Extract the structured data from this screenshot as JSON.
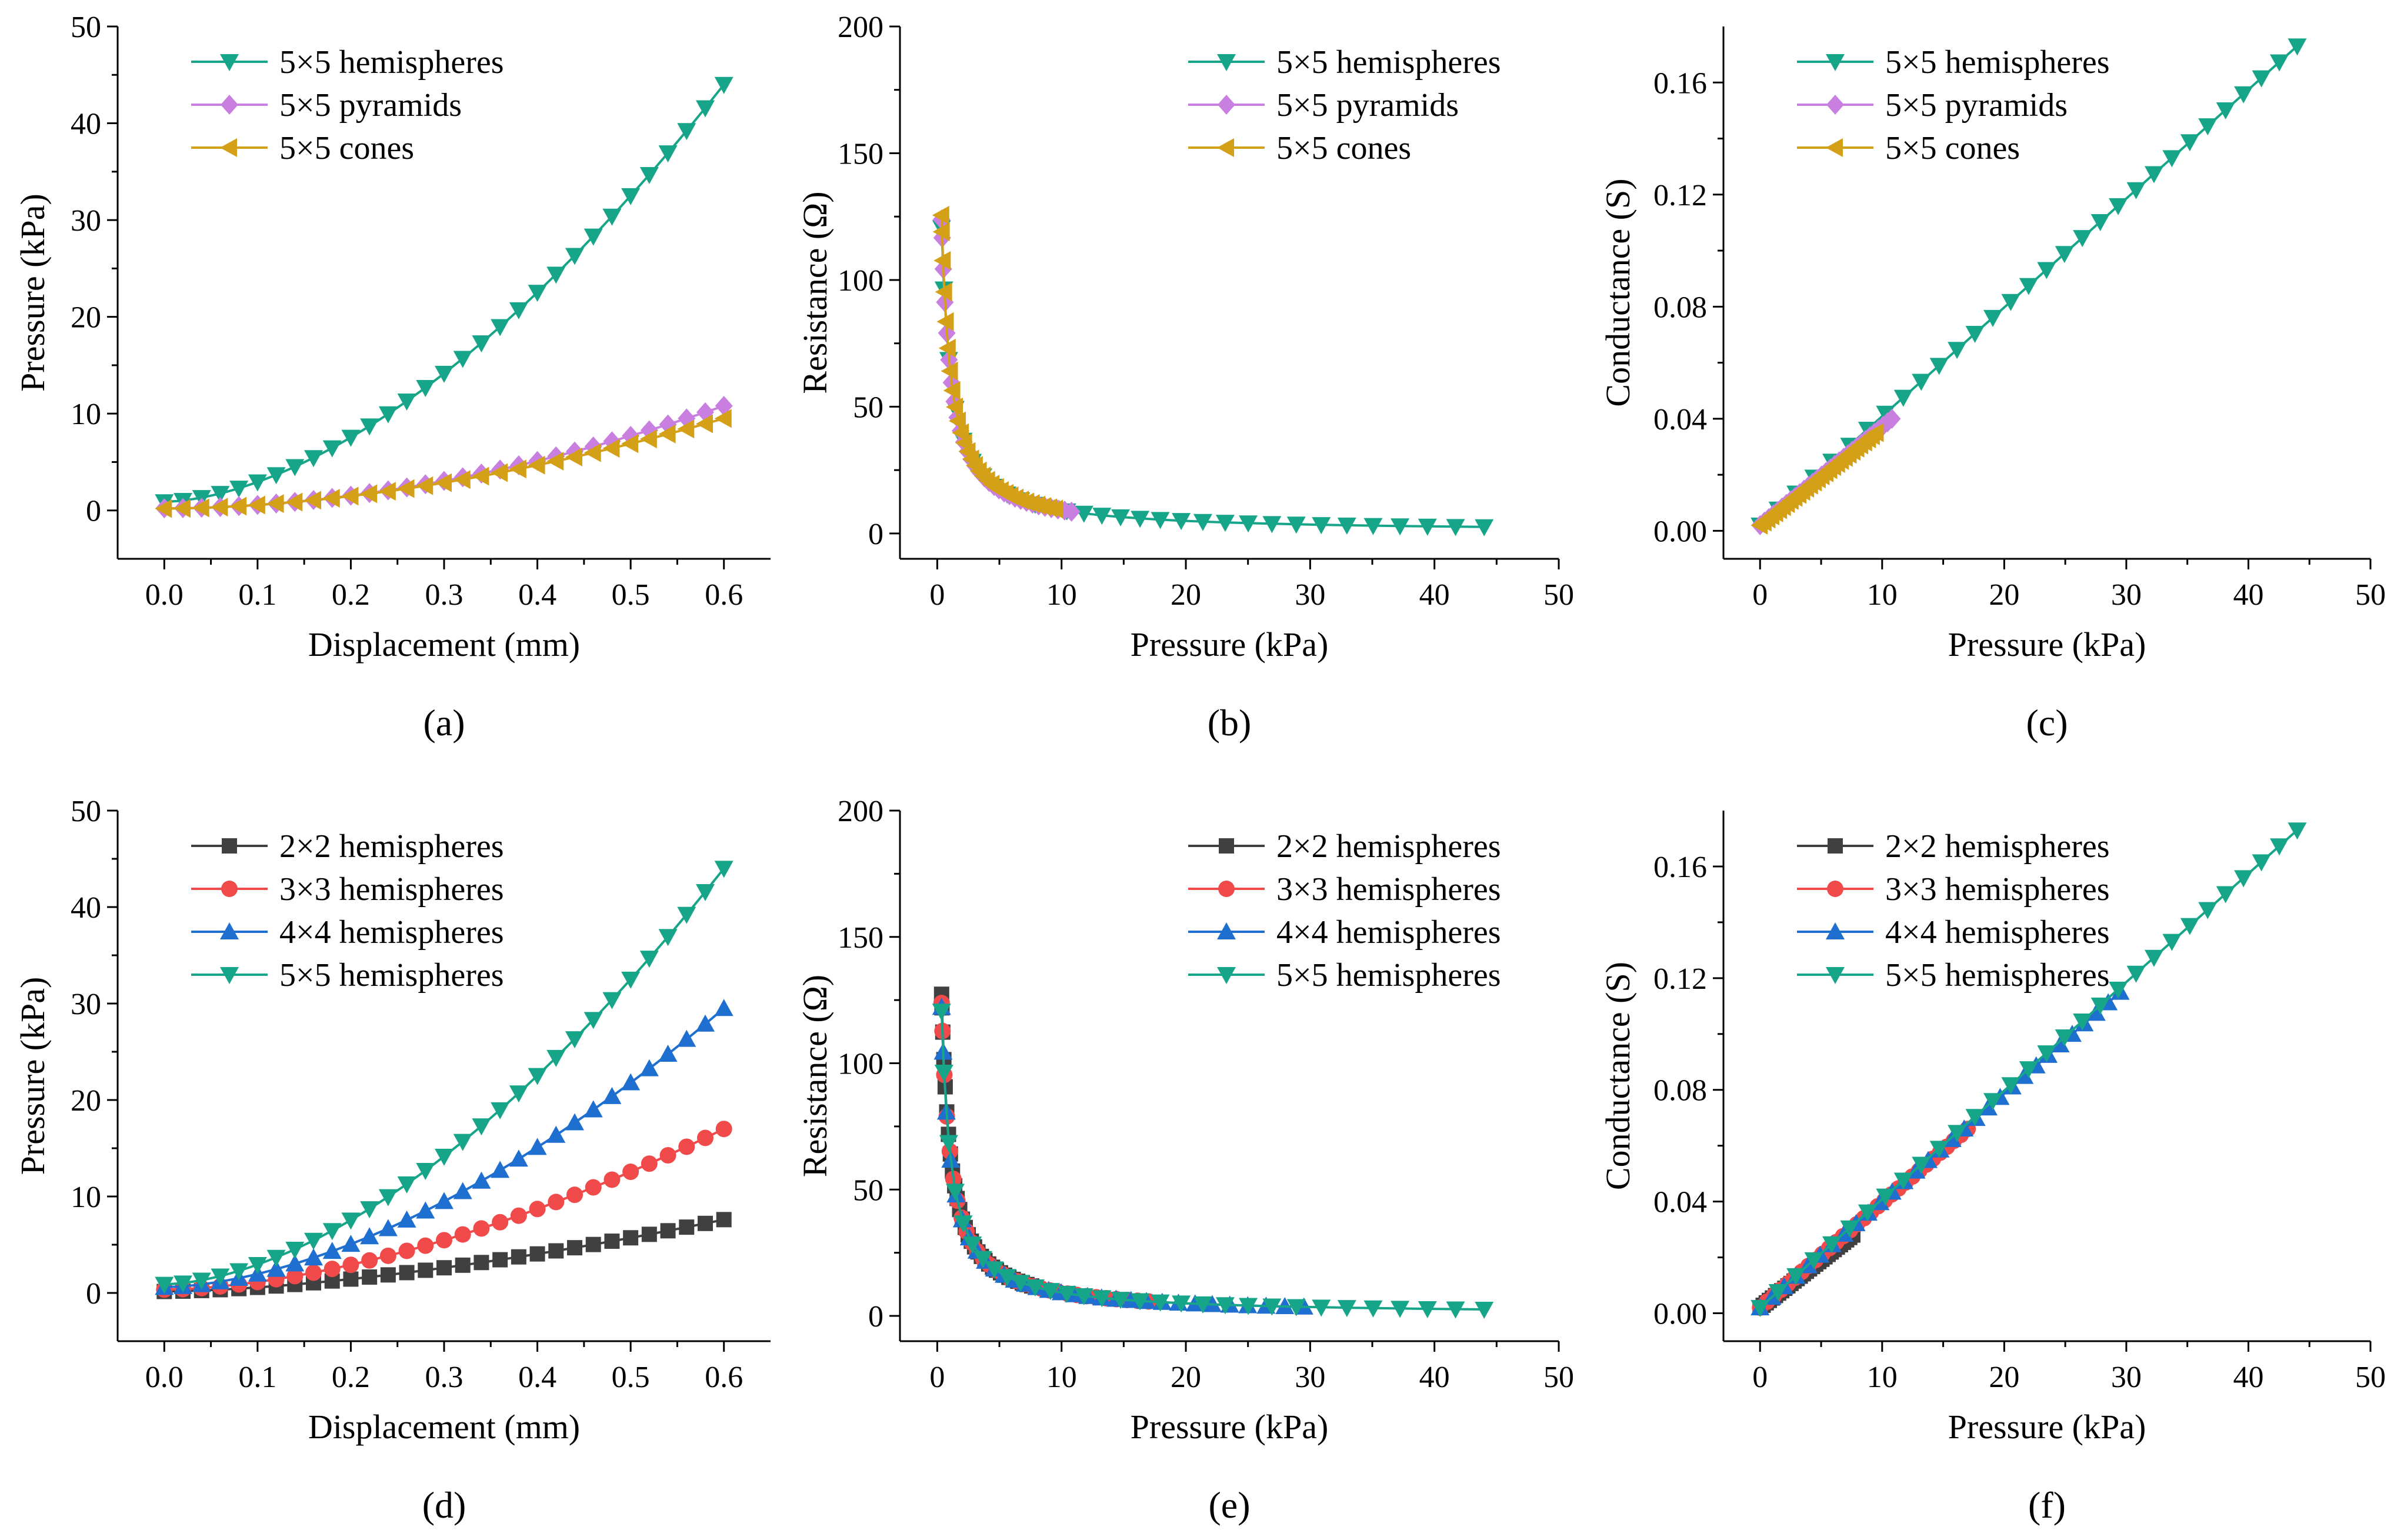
{
  "colors": {
    "green": "#17a589",
    "violet": "#c97fe0",
    "gold": "#d4a017",
    "dark": "#404040",
    "red": "#f04a4a",
    "blue": "#1f6fd1"
  },
  "chart_data": [
    {
      "type": "line",
      "panel_label": "(a)",
      "xlabel": "Displacement (mm)",
      "ylabel": "Pressure (kPa)",
      "xlim": [
        -0.05,
        0.65
      ],
      "ylim": [
        -5,
        50
      ],
      "xticks": [
        0.0,
        0.1,
        0.2,
        0.3,
        0.4,
        0.5,
        0.6
      ],
      "xtick_labels": [
        "0.0",
        "0.1",
        "0.2",
        "0.3",
        "0.4",
        "0.5",
        "0.6"
      ],
      "yticks": [
        0,
        10,
        20,
        30,
        40,
        50
      ],
      "ytick_labels": [
        "0",
        "10",
        "20",
        "30",
        "40",
        "50"
      ],
      "legend": "top-left",
      "series": [
        {
          "name": "5×5 hemispheres",
          "color_key": "green",
          "marker": "tri-down",
          "n_points": 31,
          "x_range": [
            0,
            0.6
          ],
          "y_end": 44,
          "exponent": 1.7
        },
        {
          "name": "5×5 pyramids",
          "color_key": "violet",
          "marker": "diamond",
          "n_points": 31,
          "x_range": [
            0,
            0.6
          ],
          "y_end": 10.8,
          "exponent": 1.9
        },
        {
          "name": "5×5 cones",
          "color_key": "gold",
          "marker": "tri-left",
          "n_points": 31,
          "x_range": [
            0,
            0.6
          ],
          "y_end": 9.5,
          "exponent": 1.8
        }
      ]
    },
    {
      "type": "line",
      "panel_label": "(b)",
      "xlabel": "Pressure (kPa)",
      "ylabel": "Resistance (Ω)",
      "xlim": [
        -3,
        50
      ],
      "ylim": [
        -10,
        200
      ],
      "xticks": [
        0,
        10,
        20,
        30,
        40,
        50
      ],
      "xtick_labels": [
        "0",
        "10",
        "20",
        "30",
        "40",
        "50"
      ],
      "yticks": [
        0,
        50,
        100,
        150,
        200
      ],
      "ytick_labels": [
        "0",
        "50",
        "100",
        "150",
        "200"
      ],
      "legend": "top-right",
      "series": [
        {
          "name": "5×5 hemispheres",
          "color_key": "green",
          "marker": "tri-down",
          "n_points": 31,
          "p_end": 44,
          "r_k": 90,
          "r_c": 0.4,
          "r_f": 0.55
        },
        {
          "name": "5×5 pyramids",
          "color_key": "violet",
          "marker": "diamond",
          "n_points": 31,
          "p_end": 10.8,
          "r_k": 90,
          "r_c": 0.38,
          "r_f": 0.55
        },
        {
          "name": "5×5 cones",
          "color_key": "gold",
          "marker": "tri-left",
          "n_points": 31,
          "p_end": 9.5,
          "r_k": 90,
          "r_c": 0.37,
          "r_f": 0.55
        }
      ]
    },
    {
      "type": "line",
      "panel_label": "(c)",
      "xlabel": "Pressure (kPa)",
      "ylabel": "Conductance (S)",
      "xlim": [
        -3,
        50
      ],
      "ylim": [
        -0.01,
        0.18
      ],
      "xticks": [
        0,
        10,
        20,
        30,
        40,
        50
      ],
      "xtick_labels": [
        "0",
        "10",
        "20",
        "30",
        "40",
        "50"
      ],
      "yticks": [
        0.0,
        0.04,
        0.08,
        0.12,
        0.16
      ],
      "ytick_labels": [
        "0.00",
        "0.04",
        "0.08",
        "0.12",
        "0.16"
      ],
      "legend": "top-left",
      "series": [
        {
          "name": "5×5 hemispheres",
          "color_key": "green",
          "marker": "tri-down",
          "n_points": 31,
          "p_end": 44,
          "g_end": 0.173
        },
        {
          "name": "5×5 pyramids",
          "color_key": "violet",
          "marker": "diamond",
          "n_points": 31,
          "p_end": 10.8,
          "g_end": 0.04
        },
        {
          "name": "5×5 cones",
          "color_key": "gold",
          "marker": "tri-left",
          "n_points": 31,
          "p_end": 9.5,
          "g_end": 0.035
        }
      ]
    },
    {
      "type": "line",
      "panel_label": "(d)",
      "xlabel": "Displacement (mm)",
      "ylabel": "Pressure (kPa)",
      "xlim": [
        -0.05,
        0.65
      ],
      "ylim": [
        -5,
        50
      ],
      "xticks": [
        0.0,
        0.1,
        0.2,
        0.3,
        0.4,
        0.5,
        0.6
      ],
      "xtick_labels": [
        "0.0",
        "0.1",
        "0.2",
        "0.3",
        "0.4",
        "0.5",
        "0.6"
      ],
      "yticks": [
        0,
        10,
        20,
        30,
        40,
        50
      ],
      "ytick_labels": [
        "0",
        "10",
        "20",
        "30",
        "40",
        "50"
      ],
      "legend": "top-left",
      "series": [
        {
          "name": "2×2 hemispheres",
          "color_key": "dark",
          "marker": "square",
          "n_points": 31,
          "x_range": [
            0,
            0.6
          ],
          "y_end": 7.6,
          "exponent": 1.6
        },
        {
          "name": "3×3 hemispheres",
          "color_key": "red",
          "marker": "circle",
          "n_points": 31,
          "x_range": [
            0,
            0.6
          ],
          "y_end": 17,
          "exponent": 1.7
        },
        {
          "name": "4×4 hemispheres",
          "color_key": "blue",
          "marker": "tri-up",
          "n_points": 31,
          "x_range": [
            0,
            0.6
          ],
          "y_end": 29.5,
          "exponent": 1.7
        },
        {
          "name": "5×5 hemispheres",
          "color_key": "green",
          "marker": "tri-down",
          "n_points": 31,
          "x_range": [
            0,
            0.6
          ],
          "y_end": 44,
          "exponent": 1.7
        }
      ]
    },
    {
      "type": "line",
      "panel_label": "(e)",
      "xlabel": "Pressure (kPa)",
      "ylabel": "Resistance (Ω)",
      "xlim": [
        -3,
        50
      ],
      "ylim": [
        -10,
        200
      ],
      "xticks": [
        0,
        10,
        20,
        30,
        40,
        50
      ],
      "xtick_labels": [
        "0",
        "10",
        "20",
        "30",
        "40",
        "50"
      ],
      "yticks": [
        0,
        50,
        100,
        150,
        200
      ],
      "ytick_labels": [
        "0",
        "50",
        "100",
        "150",
        "200"
      ],
      "legend": "top-right",
      "series": [
        {
          "name": "2×2 hemispheres",
          "color_key": "dark",
          "marker": "square",
          "n_points": 31,
          "p_end": 7.6,
          "r_k": 90,
          "r_c": 0.36,
          "r_f": 0.55
        },
        {
          "name": "3×3 hemispheres",
          "color_key": "red",
          "marker": "circle",
          "n_points": 31,
          "p_end": 17,
          "r_k": 90,
          "r_c": 0.38,
          "r_f": 0.55
        },
        {
          "name": "4×4 hemispheres",
          "color_key": "blue",
          "marker": "tri-up",
          "n_points": 31,
          "p_end": 29.5,
          "r_k": 90,
          "r_c": 0.39,
          "r_f": 0.55
        },
        {
          "name": "5×5 hemispheres",
          "color_key": "green",
          "marker": "tri-down",
          "n_points": 31,
          "p_end": 44,
          "r_k": 90,
          "r_c": 0.4,
          "r_f": 0.55
        }
      ]
    },
    {
      "type": "line",
      "panel_label": "(f)",
      "xlabel": "Pressure (kPa)",
      "ylabel": "Conductance (S)",
      "xlim": [
        -3,
        50
      ],
      "ylim": [
        -0.01,
        0.18
      ],
      "xticks": [
        0,
        10,
        20,
        30,
        40,
        50
      ],
      "xtick_labels": [
        "0",
        "10",
        "20",
        "30",
        "40",
        "50"
      ],
      "yticks": [
        0.0,
        0.04,
        0.08,
        0.12,
        0.16
      ],
      "ytick_labels": [
        "0.00",
        "0.04",
        "0.08",
        "0.12",
        "0.16"
      ],
      "legend": "top-left",
      "series": [
        {
          "name": "2×2 hemispheres",
          "color_key": "dark",
          "marker": "square",
          "n_points": 31,
          "p_end": 7.6,
          "g_end": 0.028
        },
        {
          "name": "3×3 hemispheres",
          "color_key": "red",
          "marker": "circle",
          "n_points": 31,
          "p_end": 17,
          "g_end": 0.066
        },
        {
          "name": "4×4 hemispheres",
          "color_key": "blue",
          "marker": "tri-up",
          "n_points": 31,
          "p_end": 29.5,
          "g_end": 0.115
        },
        {
          "name": "5×5 hemispheres",
          "color_key": "green",
          "marker": "tri-down",
          "n_points": 31,
          "p_end": 44,
          "g_end": 0.173
        }
      ]
    }
  ]
}
